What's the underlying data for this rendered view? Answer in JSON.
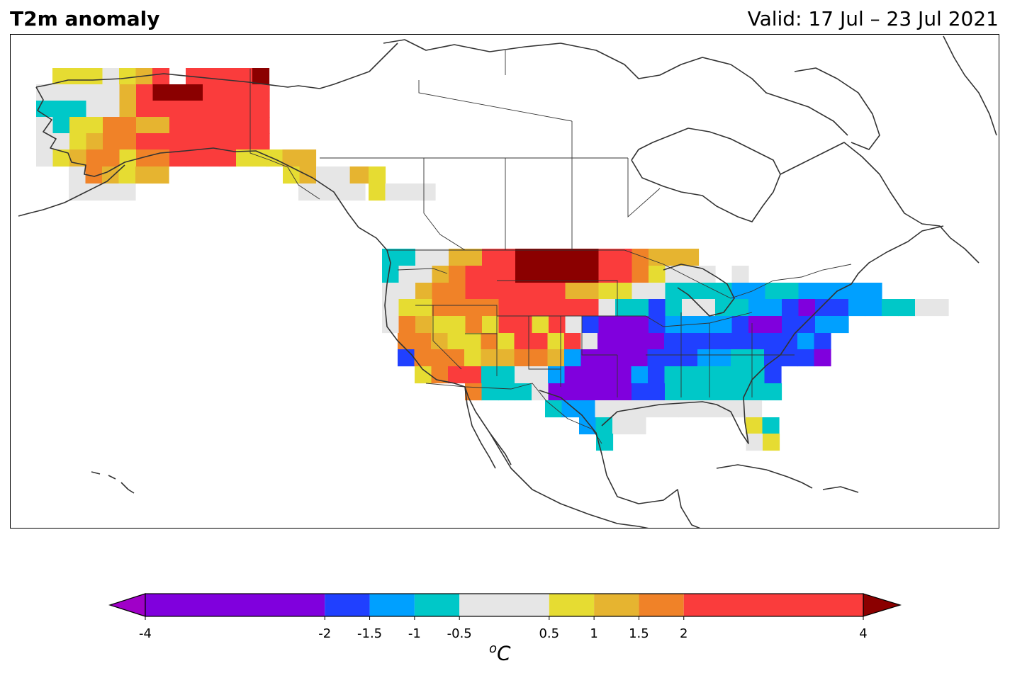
{
  "header": {
    "title": "T2m anomaly",
    "valid": "Valid: 17 Jul – 23 Jul 2021"
  },
  "colorbar": {
    "unit_prefix": "o",
    "unit_main": "C",
    "bounds": [
      -4,
      -2,
      -1.5,
      -1,
      -0.5,
      0.5,
      1,
      1.5,
      2,
      4
    ],
    "tick_labels": [
      "-4",
      "-2",
      "-1.5",
      "-1",
      "-0.5",
      "0.5",
      "1",
      "1.5",
      "2",
      "4"
    ],
    "colors": [
      "#8000dd",
      "#2040ff",
      "#00a0ff",
      "#00c8c8",
      "#e6e6e6",
      "#e6dc32",
      "#e6b430",
      "#f08228",
      "#fa3c3c"
    ],
    "under_color": "#a000c8",
    "over_color": "#8b0000",
    "extend": "both"
  },
  "map": {
    "region": "North America",
    "coastline_color": "#333333",
    "legend_levels": {
      "P": "#8000dd",
      "B": "#2040ff",
      "L": "#00a0ff",
      "T": "#00c8c8",
      "G": "#e6e6e6",
      "Y": "#e6dc32",
      "O": "#e6b430",
      "N": "#f08228",
      "R": "#fa3c3c",
      "D": "#8b0000"
    }
  }
}
